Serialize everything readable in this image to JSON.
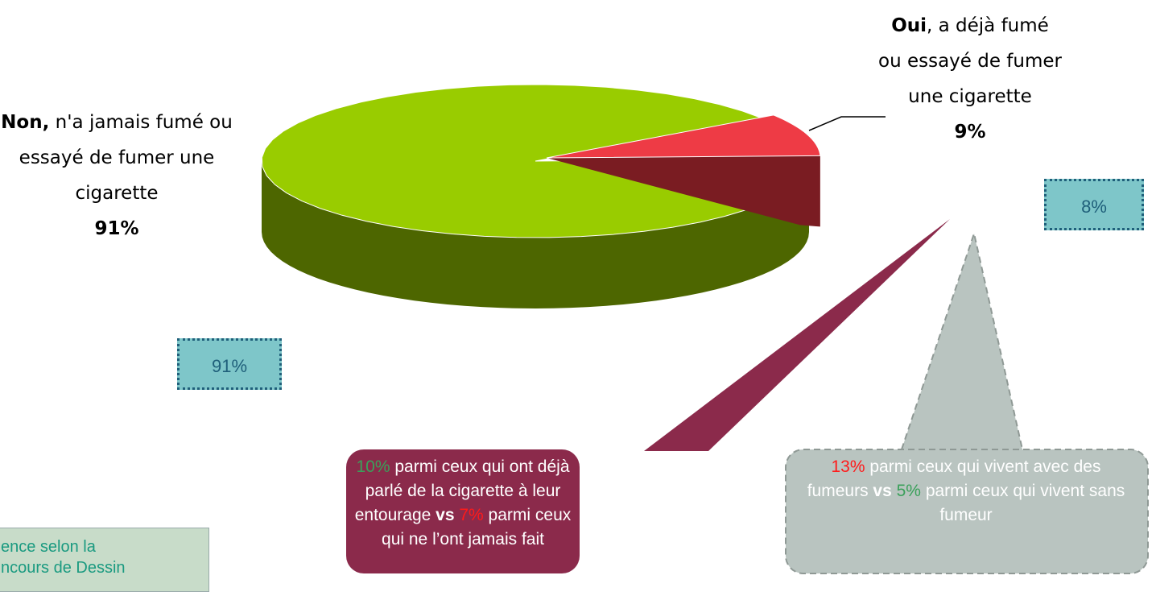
{
  "chart_data": {
    "type": "pie3d",
    "categories_bold": [
      "Non,",
      "Oui"
    ],
    "categories_rest": [
      "n'a jamais fumé ou essayé de fumer une cigarette",
      ", a déjà fumé ou essayé de fumer une cigarette"
    ],
    "values": [
      91,
      9
    ],
    "value_labels": [
      "91%",
      "9%"
    ],
    "colors": [
      "#99cc00",
      "#ee3b45"
    ],
    "side_colors": [
      "#4d6600",
      "#7a1c22"
    ],
    "comparison_labels": [
      "91%",
      "8%"
    ],
    "callouts": [
      [
        "10%",
        " parmi ceux qui ont déjà parlé de la cigarette à leur entourage ",
        "vs",
        " ",
        "7%",
        " parmi ceux qui ne l’ont jamais fait"
      ],
      [
        "13%",
        " parmi ceux qui vivent avec des fumeurs ",
        "vs",
        " ",
        "5%",
        " parmi ceux qui vivent sans fumeur"
      ]
    ],
    "footnote": [
      "ence selon la",
      "ncours de Dessin"
    ]
  }
}
